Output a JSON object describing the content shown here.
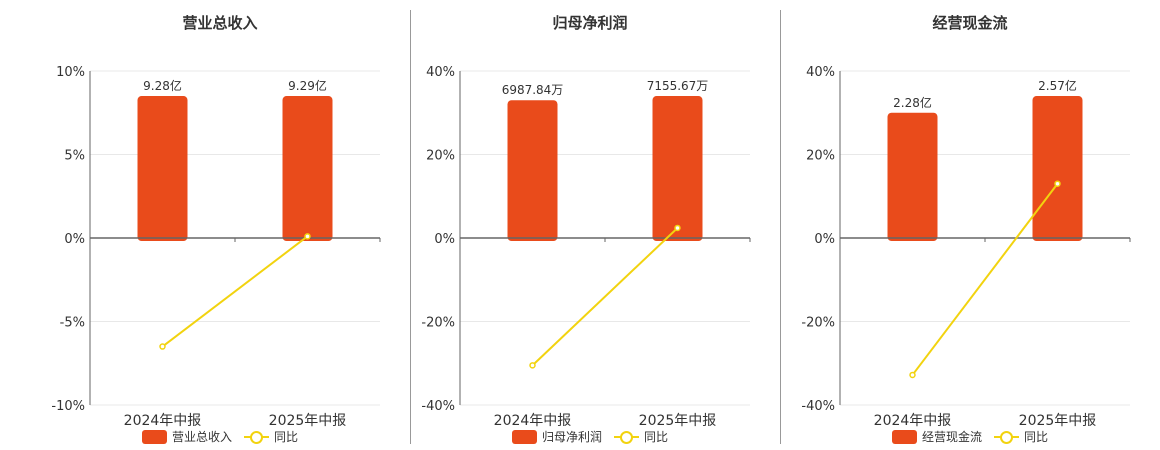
{
  "colors": {
    "bar": "#e94b1b",
    "line": "#f2d30f",
    "axis": "#666666",
    "grid": "#e8e8e8",
    "text": "#333333"
  },
  "chart_data": [
    {
      "type": "bar",
      "title": "营业总收入",
      "categories": [
        "2024年中报",
        "2025年中报"
      ],
      "bar_values": [
        9.28,
        9.29
      ],
      "bar_labels": [
        "9.28亿",
        "9.29亿"
      ],
      "yoy": [
        -6.5,
        0.1
      ],
      "ylim": [
        -10,
        10
      ],
      "yticks": [
        10,
        5,
        0,
        -5,
        -10
      ],
      "ytick_labels": [
        "10%",
        "5%",
        "0%",
        "-5%",
        "-10%"
      ],
      "bar_heights_pct": [
        8.5,
        8.5
      ],
      "legend": {
        "bar": "营业总收入",
        "line": "同比"
      }
    },
    {
      "type": "bar",
      "title": "归母净利润",
      "categories": [
        "2024年中报",
        "2025年中报"
      ],
      "bar_values": [
        6987.84,
        7155.67
      ],
      "bar_labels": [
        "6987.84万",
        "7155.67万"
      ],
      "yoy": [
        -30.5,
        2.4
      ],
      "ylim": [
        -40,
        40
      ],
      "yticks": [
        40,
        20,
        0,
        -20,
        -40
      ],
      "ytick_labels": [
        "40%",
        "20%",
        "0%",
        "-20%",
        "-40%"
      ],
      "bar_heights_pct": [
        33,
        34
      ],
      "legend": {
        "bar": "归母净利润",
        "line": "同比"
      }
    },
    {
      "type": "bar",
      "title": "经营现金流",
      "categories": [
        "2024年中报",
        "2025年中报"
      ],
      "bar_values": [
        2.28,
        2.57
      ],
      "bar_labels": [
        "2.28亿",
        "2.57亿"
      ],
      "yoy": [
        -32.8,
        13.0
      ],
      "ylim": [
        -40,
        40
      ],
      "yticks": [
        40,
        20,
        0,
        -20,
        -40
      ],
      "ytick_labels": [
        "40%",
        "20%",
        "0%",
        "-20%",
        "-40%"
      ],
      "bar_heights_pct": [
        30,
        34
      ],
      "legend": {
        "bar": "经营现金流",
        "line": "同比"
      }
    }
  ]
}
